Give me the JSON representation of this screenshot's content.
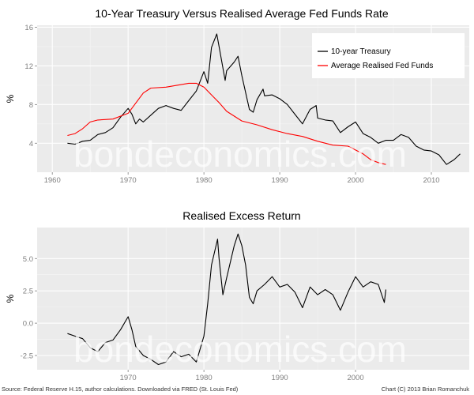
{
  "watermark": "bondeconomics.com",
  "footer": {
    "source": "Source: Federal Reserve H.15, author calculations. Downloaded via FRED (St. Louis Fed)",
    "credit": "Chart (C) 2013 Brian Romanchuk"
  },
  "chart_data": [
    {
      "type": "line",
      "title": "10-Year Treasury Versus Realised Average Fed Funds Rate",
      "xlabel": "",
      "ylabel": "%",
      "xlim": [
        1958,
        2015
      ],
      "ylim": [
        1.0,
        16.2
      ],
      "x_ticks": [
        1960,
        1970,
        1980,
        1990,
        2000,
        2010
      ],
      "y_ticks": [
        4,
        8,
        12,
        16
      ],
      "grid": true,
      "legend_position": "top-right",
      "series": [
        {
          "name": "10-year Treasury",
          "color": "#000000",
          "points": [
            [
              1962,
              4.0
            ],
            [
              1963,
              3.9
            ],
            [
              1964,
              4.2
            ],
            [
              1965,
              4.3
            ],
            [
              1966,
              4.9
            ],
            [
              1967,
              5.1
            ],
            [
              1968,
              5.6
            ],
            [
              1969,
              6.7
            ],
            [
              1970,
              7.6
            ],
            [
              1970.5,
              7.0
            ],
            [
              1971,
              6.0
            ],
            [
              1971.5,
              6.5
            ],
            [
              1972,
              6.2
            ],
            [
              1973,
              6.9
            ],
            [
              1974,
              7.6
            ],
            [
              1975,
              7.9
            ],
            [
              1976,
              7.6
            ],
            [
              1977,
              7.4
            ],
            [
              1978,
              8.4
            ],
            [
              1979,
              9.4
            ],
            [
              1980,
              11.4
            ],
            [
              1980.5,
              10.2
            ],
            [
              1981,
              13.9
            ],
            [
              1981.7,
              15.3
            ],
            [
              1982,
              14.0
            ],
            [
              1982.8,
              10.5
            ],
            [
              1983,
              11.5
            ],
            [
              1984,
              12.4
            ],
            [
              1984.5,
              13.0
            ],
            [
              1985,
              11.0
            ],
            [
              1986,
              7.5
            ],
            [
              1986.5,
              7.2
            ],
            [
              1987,
              8.5
            ],
            [
              1987.8,
              9.6
            ],
            [
              1988,
              8.9
            ],
            [
              1989,
              9.0
            ],
            [
              1990,
              8.6
            ],
            [
              1991,
              8.0
            ],
            [
              1992,
              7.0
            ],
            [
              1993,
              6.0
            ],
            [
              1994,
              7.5
            ],
            [
              1994.8,
              7.9
            ],
            [
              1995,
              6.6
            ],
            [
              1996,
              6.4
            ],
            [
              1997,
              6.3
            ],
            [
              1998,
              5.1
            ],
            [
              1999,
              5.7
            ],
            [
              2000,
              6.2
            ],
            [
              2001,
              5.0
            ],
            [
              2002,
              4.6
            ],
            [
              2003,
              4.0
            ],
            [
              2004,
              4.3
            ],
            [
              2005,
              4.3
            ],
            [
              2006,
              4.9
            ],
            [
              2007,
              4.6
            ],
            [
              2008,
              3.7
            ],
            [
              2009,
              3.3
            ],
            [
              2010,
              3.2
            ],
            [
              2011,
              2.8
            ],
            [
              2012,
              1.8
            ],
            [
              2013,
              2.3
            ],
            [
              2013.8,
              2.9
            ]
          ]
        },
        {
          "name": "Average Realised Fed Funds",
          "color": "#ff0000",
          "points": [
            [
              1962,
              4.8
            ],
            [
              1963,
              5.0
            ],
            [
              1964,
              5.5
            ],
            [
              1965,
              6.2
            ],
            [
              1966,
              6.4
            ],
            [
              1968,
              6.5
            ],
            [
              1970,
              7.1
            ],
            [
              1972,
              9.2
            ],
            [
              1973,
              9.7
            ],
            [
              1975,
              9.8
            ],
            [
              1978,
              10.2
            ],
            [
              1979,
              10.2
            ],
            [
              1980,
              9.8
            ],
            [
              1981,
              9.0
            ],
            [
              1982,
              8.2
            ],
            [
              1983,
              7.3
            ],
            [
              1984,
              6.8
            ],
            [
              1985,
              6.3
            ],
            [
              1987,
              5.9
            ],
            [
              1989,
              5.4
            ],
            [
              1991,
              5.0
            ],
            [
              1993,
              4.7
            ],
            [
              1995,
              4.2
            ],
            [
              1997,
              3.8
            ],
            [
              1999,
              3.7
            ],
            [
              2001,
              2.9
            ],
            [
              2002,
              2.3
            ],
            [
              2003,
              2.0
            ],
            [
              2004,
              1.8
            ]
          ]
        }
      ]
    },
    {
      "type": "line",
      "title": "Realised Excess Return",
      "xlabel": "",
      "ylabel": "%",
      "xlim": [
        1958,
        2015
      ],
      "ylim": [
        -3.6,
        7.4
      ],
      "x_ticks": [
        1970,
        1980,
        1990,
        2000
      ],
      "y_ticks": [
        -2.5,
        0.0,
        2.5,
        5.0
      ],
      "grid": true,
      "series": [
        {
          "name": "",
          "color": "#000000",
          "points": [
            [
              1962,
              -0.8
            ],
            [
              1963,
              -1.0
            ],
            [
              1964,
              -1.2
            ],
            [
              1965,
              -1.9
            ],
            [
              1966,
              -2.2
            ],
            [
              1967,
              -1.5
            ],
            [
              1968,
              -1.3
            ],
            [
              1969,
              -0.5
            ],
            [
              1970,
              0.5
            ],
            [
              1970.5,
              -0.5
            ],
            [
              1971,
              -1.8
            ],
            [
              1972,
              -2.5
            ],
            [
              1973,
              -2.8
            ],
            [
              1974,
              -3.2
            ],
            [
              1975,
              -3.0
            ],
            [
              1976,
              -2.2
            ],
            [
              1977,
              -2.6
            ],
            [
              1978,
              -2.4
            ],
            [
              1979,
              -3.0
            ],
            [
              1980,
              -1.0
            ],
            [
              1980.5,
              1.5
            ],
            [
              1981,
              4.5
            ],
            [
              1981.8,
              6.5
            ],
            [
              1982,
              5.0
            ],
            [
              1982.5,
              2.2
            ],
            [
              1983,
              3.5
            ],
            [
              1984,
              6.0
            ],
            [
              1984.5,
              6.9
            ],
            [
              1985,
              6.0
            ],
            [
              1985.5,
              4.5
            ],
            [
              1986,
              2.0
            ],
            [
              1986.5,
              1.5
            ],
            [
              1987,
              2.5
            ],
            [
              1988,
              3.0
            ],
            [
              1989,
              3.6
            ],
            [
              1990,
              2.8
            ],
            [
              1991,
              3.0
            ],
            [
              1992,
              2.4
            ],
            [
              1993,
              1.2
            ],
            [
              1994,
              2.8
            ],
            [
              1995,
              2.2
            ],
            [
              1996,
              2.6
            ],
            [
              1997,
              2.2
            ],
            [
              1998,
              1.0
            ],
            [
              1999,
              2.4
            ],
            [
              2000,
              3.6
            ],
            [
              2001,
              2.8
            ],
            [
              2002,
              3.2
            ],
            [
              2003,
              3.0
            ],
            [
              2003.8,
              1.6
            ],
            [
              2004,
              2.6
            ]
          ]
        }
      ]
    }
  ]
}
